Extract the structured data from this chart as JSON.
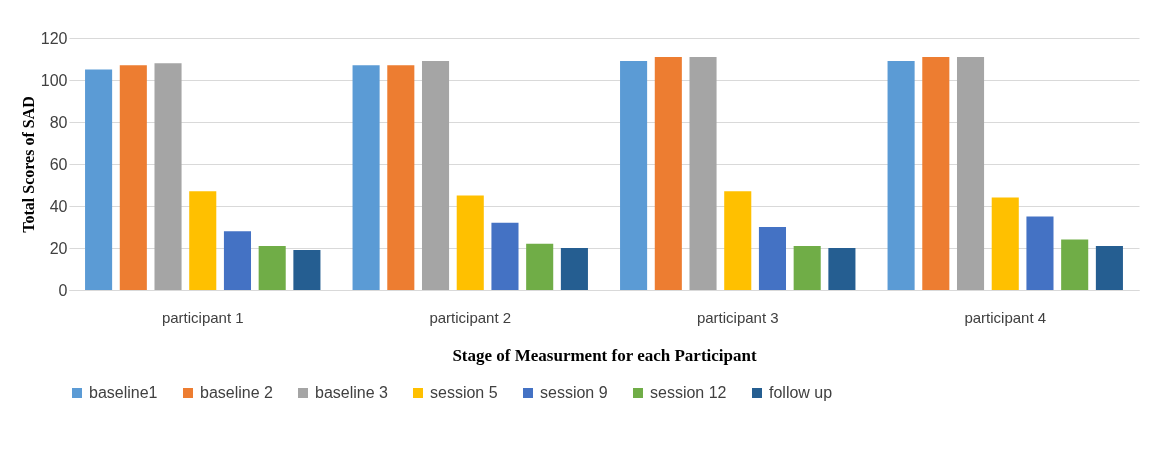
{
  "chart_data": {
    "type": "bar",
    "xlabel": "Stage of Measurment for each Participant",
    "ylabel": "Total Scores of SAD",
    "categories": [
      "participant 1",
      "participant 2",
      "participant 3",
      "participant 4"
    ],
    "series": [
      {
        "name": "baseline1",
        "color": "#5b9bd5",
        "values": [
          105,
          107,
          109,
          109
        ]
      },
      {
        "name": "baseline 2",
        "color": "#ed7d31",
        "values": [
          107,
          107,
          111,
          111
        ]
      },
      {
        "name": "baseline 3",
        "color": "#a5a5a5",
        "values": [
          108,
          109,
          111,
          111
        ]
      },
      {
        "name": "session 5",
        "color": "#ffc000",
        "values": [
          47,
          45,
          47,
          44
        ]
      },
      {
        "name": "session 9",
        "color": "#4472c4",
        "values": [
          28,
          32,
          30,
          35
        ]
      },
      {
        "name": "session 12",
        "color": "#70ad47",
        "values": [
          21,
          22,
          21,
          24
        ]
      },
      {
        "name": "follow up",
        "color": "#255e91",
        "values": [
          19,
          20,
          20,
          21
        ]
      }
    ],
    "ylim": [
      0,
      120
    ],
    "yticks": [
      0,
      20,
      40,
      60,
      80,
      100,
      120
    ],
    "grid": "y",
    "legend": "bottom"
  }
}
